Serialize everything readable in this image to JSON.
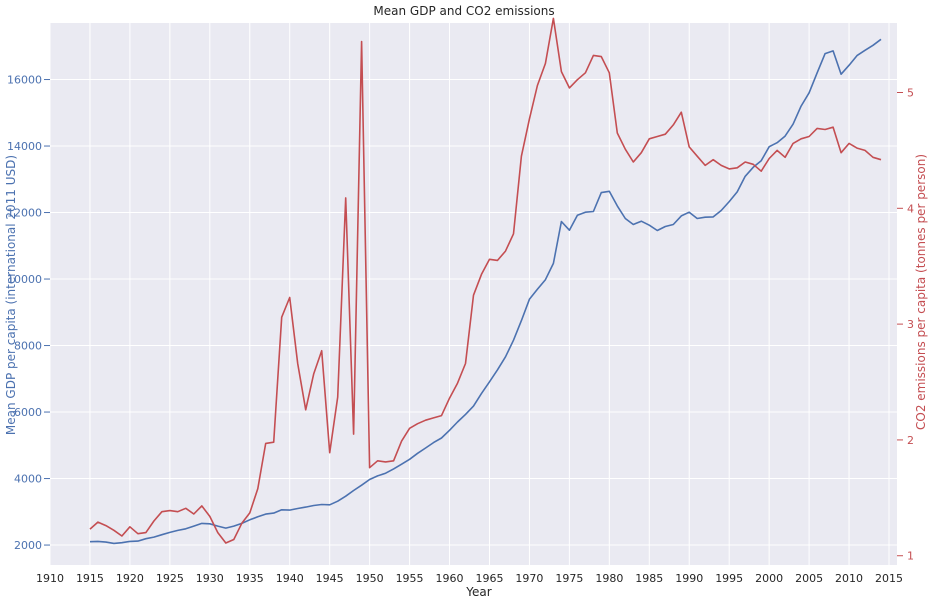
{
  "chart_data": {
    "type": "line",
    "title": "Mean GDP and CO2 emissions",
    "xlabel": "Year",
    "ylabel_left": "Mean GDP per capita (international 2011 USD)",
    "ylabel_right": "CO2 emissions per capita (tonnes per person)",
    "xlim": [
      1910,
      2016
    ],
    "ylim_left": [
      1400,
      17700
    ],
    "ylim_right": [
      0.92,
      5.6
    ],
    "xticks": [
      1910,
      1915,
      1920,
      1925,
      1930,
      1935,
      1940,
      1945,
      1950,
      1955,
      1960,
      1965,
      1970,
      1975,
      1980,
      1985,
      1990,
      1995,
      2000,
      2005,
      2010,
      2015
    ],
    "yticks_left": [
      2000,
      4000,
      6000,
      8000,
      10000,
      12000,
      14000,
      16000
    ],
    "yticks_right": [
      1,
      2,
      3,
      4,
      5
    ],
    "grid": true,
    "colors": {
      "gdp": "#4c72b0",
      "co2": "#c44e52",
      "background": "#eaeaf2",
      "grid": "#ffffff"
    },
    "x": [
      1915,
      1916,
      1917,
      1918,
      1919,
      1920,
      1921,
      1922,
      1923,
      1924,
      1925,
      1926,
      1927,
      1928,
      1929,
      1930,
      1931,
      1932,
      1933,
      1934,
      1935,
      1936,
      1937,
      1938,
      1939,
      1940,
      1941,
      1942,
      1943,
      1944,
      1945,
      1946,
      1947,
      1948,
      1949,
      1950,
      1951,
      1952,
      1953,
      1954,
      1955,
      1956,
      1957,
      1958,
      1959,
      1960,
      1961,
      1962,
      1963,
      1964,
      1965,
      1966,
      1967,
      1968,
      1969,
      1970,
      1971,
      1972,
      1973,
      1974,
      1975,
      1976,
      1977,
      1978,
      1979,
      1980,
      1981,
      1982,
      1983,
      1984,
      1985,
      1986,
      1987,
      1988,
      1989,
      1990,
      1991,
      1992,
      1993,
      1994,
      1995,
      1996,
      1997,
      1998,
      1999,
      2000,
      2001,
      2002,
      2003,
      2004,
      2005,
      2006,
      2007,
      2008,
      2009,
      2010,
      2011,
      2012,
      2013,
      2014
    ],
    "series": [
      {
        "axis": "left",
        "values": [
          2100,
          2110,
          2090,
          2050,
          2070,
          2110,
          2120,
          2190,
          2240,
          2310,
          2380,
          2440,
          2490,
          2570,
          2650,
          2640,
          2570,
          2510,
          2570,
          2650,
          2760,
          2850,
          2930,
          2960,
          3060,
          3050,
          3100,
          3140,
          3190,
          3220,
          3210,
          3320,
          3470,
          3640,
          3800,
          3970,
          4080,
          4160,
          4290,
          4430,
          4580,
          4760,
          4920,
          5080,
          5220,
          5450,
          5700,
          5930,
          6180,
          6560,
          6910,
          7270,
          7660,
          8160,
          8750,
          9390,
          9690,
          9980,
          10470,
          11730,
          11470,
          11920,
          12010,
          12030,
          12600,
          12640,
          12200,
          11820,
          11640,
          11740,
          11620,
          11460,
          11580,
          11640,
          11900,
          12010,
          11820,
          11860,
          11870,
          12060,
          12330,
          12620,
          13090,
          13360,
          13560,
          13980,
          14100,
          14300,
          14660,
          15200,
          15600,
          16200,
          16780,
          16860,
          16160,
          16430,
          16720,
          16880,
          17030,
          17210
        ]
      },
      {
        "axis": "right",
        "values": [
          1.23,
          1.29,
          1.26,
          1.22,
          1.17,
          1.25,
          1.19,
          1.2,
          1.3,
          1.38,
          1.39,
          1.38,
          1.41,
          1.36,
          1.43,
          1.34,
          1.2,
          1.11,
          1.14,
          1.28,
          1.37,
          1.58,
          1.97,
          1.98,
          3.06,
          3.23,
          2.66,
          2.26,
          2.57,
          2.77,
          1.89,
          2.37,
          4.09,
          2.05,
          5.44,
          1.76,
          1.82,
          1.81,
          1.82,
          1.99,
          2.1,
          2.14,
          2.17,
          2.19,
          2.21,
          2.36,
          2.49,
          2.66,
          3.25,
          3.43,
          3.56,
          3.55,
          3.63,
          3.78,
          4.45,
          4.77,
          5.06,
          5.25,
          5.64,
          5.18,
          5.04,
          5.11,
          5.17,
          5.32,
          5.31,
          5.17,
          4.65,
          4.51,
          4.4,
          4.48,
          4.6,
          4.62,
          4.64,
          4.72,
          4.83,
          4.53,
          4.45,
          4.37,
          4.42,
          4.37,
          4.34,
          4.35,
          4.4,
          4.38,
          4.32,
          4.43,
          4.5,
          4.44,
          4.56,
          4.6,
          4.62,
          4.69,
          4.68,
          4.7,
          4.48,
          4.56,
          4.52,
          4.5,
          4.44,
          4.42
        ]
      }
    ]
  }
}
